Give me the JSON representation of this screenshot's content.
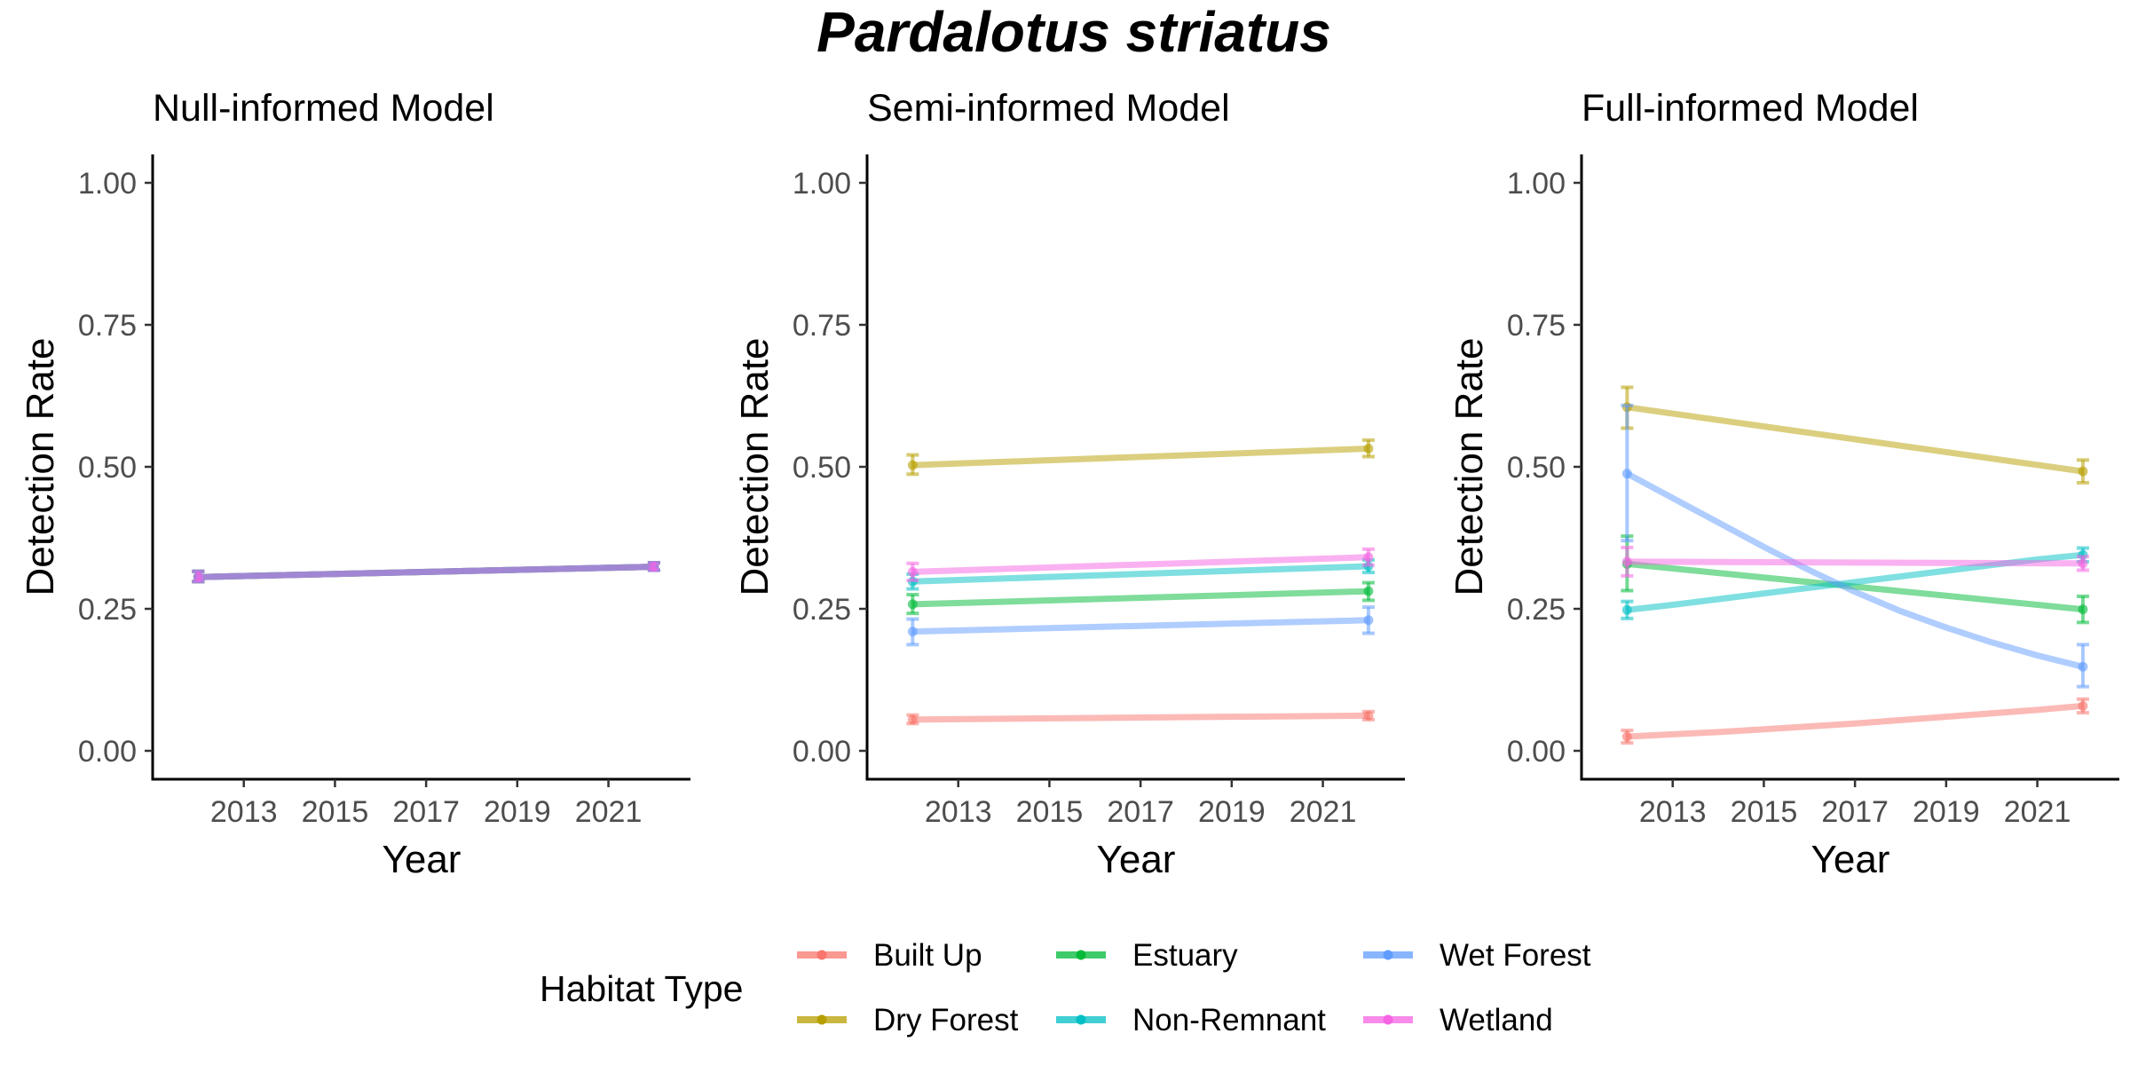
{
  "chart_data": {
    "type": "line",
    "title": "Pardalotus striatus",
    "xlabel": "Year",
    "ylabel": "Detection Rate",
    "xlim": [
      2011,
      2022.8
    ],
    "ylim": [
      -0.05,
      1.05
    ],
    "x_ticks": [
      2013,
      2015,
      2017,
      2019,
      2021
    ],
    "y_ticks": [
      0,
      0.25,
      0.5,
      0.75,
      1
    ],
    "y_tick_labels": [
      "0.00",
      "0.25",
      "0.50",
      "0.75",
      "1.00"
    ],
    "grid": false,
    "legend": {
      "title": "Habitat Type",
      "position": "bottom",
      "entries": [
        {
          "label": "Built Up",
          "color": "#F8766D"
        },
        {
          "label": "Dry Forest",
          "color": "#B79F00"
        },
        {
          "label": "Estuary",
          "color": "#00BA38"
        },
        {
          "label": "Non-Remnant",
          "color": "#00BFC4"
        },
        {
          "label": "Wet Forest",
          "color": "#619CFF"
        },
        {
          "label": "Wetland",
          "color": "#F564E3"
        }
      ]
    },
    "panels": [
      {
        "title": "Null-informed Model",
        "series": [
          {
            "name": "Built Up",
            "color": "#F8766D",
            "x": [
              2012,
              2022
            ],
            "y": [
              0.306,
              0.324
            ],
            "ci": [
              [
                0.298,
                0.316
              ],
              [
                0.318,
                0.331
              ]
            ]
          },
          {
            "name": "Dry Forest",
            "color": "#B79F00",
            "x": [
              2012,
              2022
            ],
            "y": [
              0.306,
              0.324
            ],
            "ci": [
              [
                0.298,
                0.316
              ],
              [
                0.318,
                0.331
              ]
            ]
          },
          {
            "name": "Estuary",
            "color": "#00BA38",
            "x": [
              2012,
              2022
            ],
            "y": [
              0.306,
              0.324
            ],
            "ci": [
              [
                0.298,
                0.316
              ],
              [
                0.318,
                0.331
              ]
            ]
          },
          {
            "name": "Non-Remnant",
            "color": "#00BFC4",
            "x": [
              2012,
              2022
            ],
            "y": [
              0.306,
              0.324
            ],
            "ci": [
              [
                0.298,
                0.316
              ],
              [
                0.318,
                0.331
              ]
            ]
          },
          {
            "name": "Wet Forest",
            "color": "#619CFF",
            "x": [
              2012,
              2022
            ],
            "y": [
              0.306,
              0.324
            ],
            "ci": [
              [
                0.298,
                0.316
              ],
              [
                0.318,
                0.331
              ]
            ]
          },
          {
            "name": "Wetland",
            "color": "#F564E3",
            "x": [
              2012,
              2022
            ],
            "y": [
              0.306,
              0.324
            ],
            "ci": [
              [
                0.298,
                0.316
              ],
              [
                0.318,
                0.331
              ]
            ]
          }
        ]
      },
      {
        "title": "Semi-informed Model",
        "series": [
          {
            "name": "Built Up",
            "color": "#F8766D",
            "x": [
              2012,
              2022
            ],
            "y": [
              0.055,
              0.062
            ],
            "ci": [
              [
                0.048,
                0.063
              ],
              [
                0.055,
                0.069
              ]
            ]
          },
          {
            "name": "Dry Forest",
            "color": "#B79F00",
            "x": [
              2012,
              2022
            ],
            "y": [
              0.503,
              0.532
            ],
            "ci": [
              [
                0.487,
                0.521
              ],
              [
                0.518,
                0.547
              ]
            ]
          },
          {
            "name": "Estuary",
            "color": "#00BA38",
            "x": [
              2012,
              2022
            ],
            "y": [
              0.258,
              0.281
            ],
            "ci": [
              [
                0.242,
                0.275
              ],
              [
                0.265,
                0.296
              ]
            ]
          },
          {
            "name": "Non-Remnant",
            "color": "#00BFC4",
            "x": [
              2012,
              2022
            ],
            "y": [
              0.298,
              0.325
            ],
            "ci": [
              [
                0.285,
                0.311
              ],
              [
                0.314,
                0.336
              ]
            ]
          },
          {
            "name": "Wet Forest",
            "color": "#619CFF",
            "x": [
              2012,
              2022
            ],
            "y": [
              0.21,
              0.23
            ],
            "ci": [
              [
                0.187,
                0.232
              ],
              [
                0.207,
                0.253
              ]
            ]
          },
          {
            "name": "Wetland",
            "color": "#F564E3",
            "x": [
              2012,
              2022
            ],
            "y": [
              0.315,
              0.341
            ],
            "ci": [
              [
                0.3,
                0.33
              ],
              [
                0.327,
                0.355
              ]
            ]
          }
        ]
      },
      {
        "title": "Full-informed Model",
        "series": [
          {
            "name": "Built Up",
            "color": "#F8766D",
            "x": [
              2012,
              2013,
              2014,
              2015,
              2016,
              2017,
              2018,
              2019,
              2020,
              2021,
              2022
            ],
            "y": [
              0.025,
              0.029,
              0.033,
              0.038,
              0.043,
              0.048,
              0.054,
              0.06,
              0.066,
              0.072,
              0.079
            ],
            "ci": [
              [
                0.014,
                0.036
              ],
              null,
              null,
              null,
              null,
              null,
              null,
              null,
              null,
              null,
              [
                0.067,
                0.091
              ]
            ]
          },
          {
            "name": "Dry Forest",
            "color": "#B79F00",
            "x": [
              2012,
              2022
            ],
            "y": [
              0.605,
              0.492
            ],
            "ci": [
              [
                0.568,
                0.64
              ],
              [
                0.472,
                0.512
              ]
            ]
          },
          {
            "name": "Estuary",
            "color": "#00BA38",
            "x": [
              2012,
              2022
            ],
            "y": [
              0.329,
              0.249
            ],
            "ci": [
              [
                0.282,
                0.378
              ],
              [
                0.226,
                0.272
              ]
            ]
          },
          {
            "name": "Non-Remnant",
            "color": "#00BFC4",
            "x": [
              2012,
              2013,
              2014,
              2015,
              2016,
              2017,
              2018,
              2019,
              2020,
              2021,
              2022
            ],
            "y": [
              0.248,
              0.257,
              0.267,
              0.277,
              0.287,
              0.297,
              0.307,
              0.317,
              0.327,
              0.337,
              0.345
            ],
            "ci": [
              [
                0.233,
                0.263
              ],
              null,
              null,
              null,
              null,
              null,
              null,
              null,
              null,
              null,
              [
                0.333,
                0.357
              ]
            ]
          },
          {
            "name": "Wet Forest",
            "color": "#619CFF",
            "x": [
              2012,
              2013,
              2014,
              2015,
              2016,
              2017,
              2018,
              2019,
              2020,
              2021,
              2022
            ],
            "y": [
              0.488,
              0.445,
              0.402,
              0.359,
              0.318,
              0.28,
              0.246,
              0.217,
              0.191,
              0.168,
              0.148
            ],
            "ci": [
              [
                0.37,
                0.608
              ],
              null,
              null,
              null,
              null,
              null,
              null,
              null,
              null,
              null,
              [
                0.113,
                0.187
              ]
            ]
          },
          {
            "name": "Wetland",
            "color": "#F564E3",
            "x": [
              2012,
              2022
            ],
            "y": [
              0.333,
              0.33
            ],
            "ci": [
              [
                0.308,
                0.358
              ],
              [
                0.318,
                0.342
              ]
            ]
          }
        ]
      }
    ]
  }
}
